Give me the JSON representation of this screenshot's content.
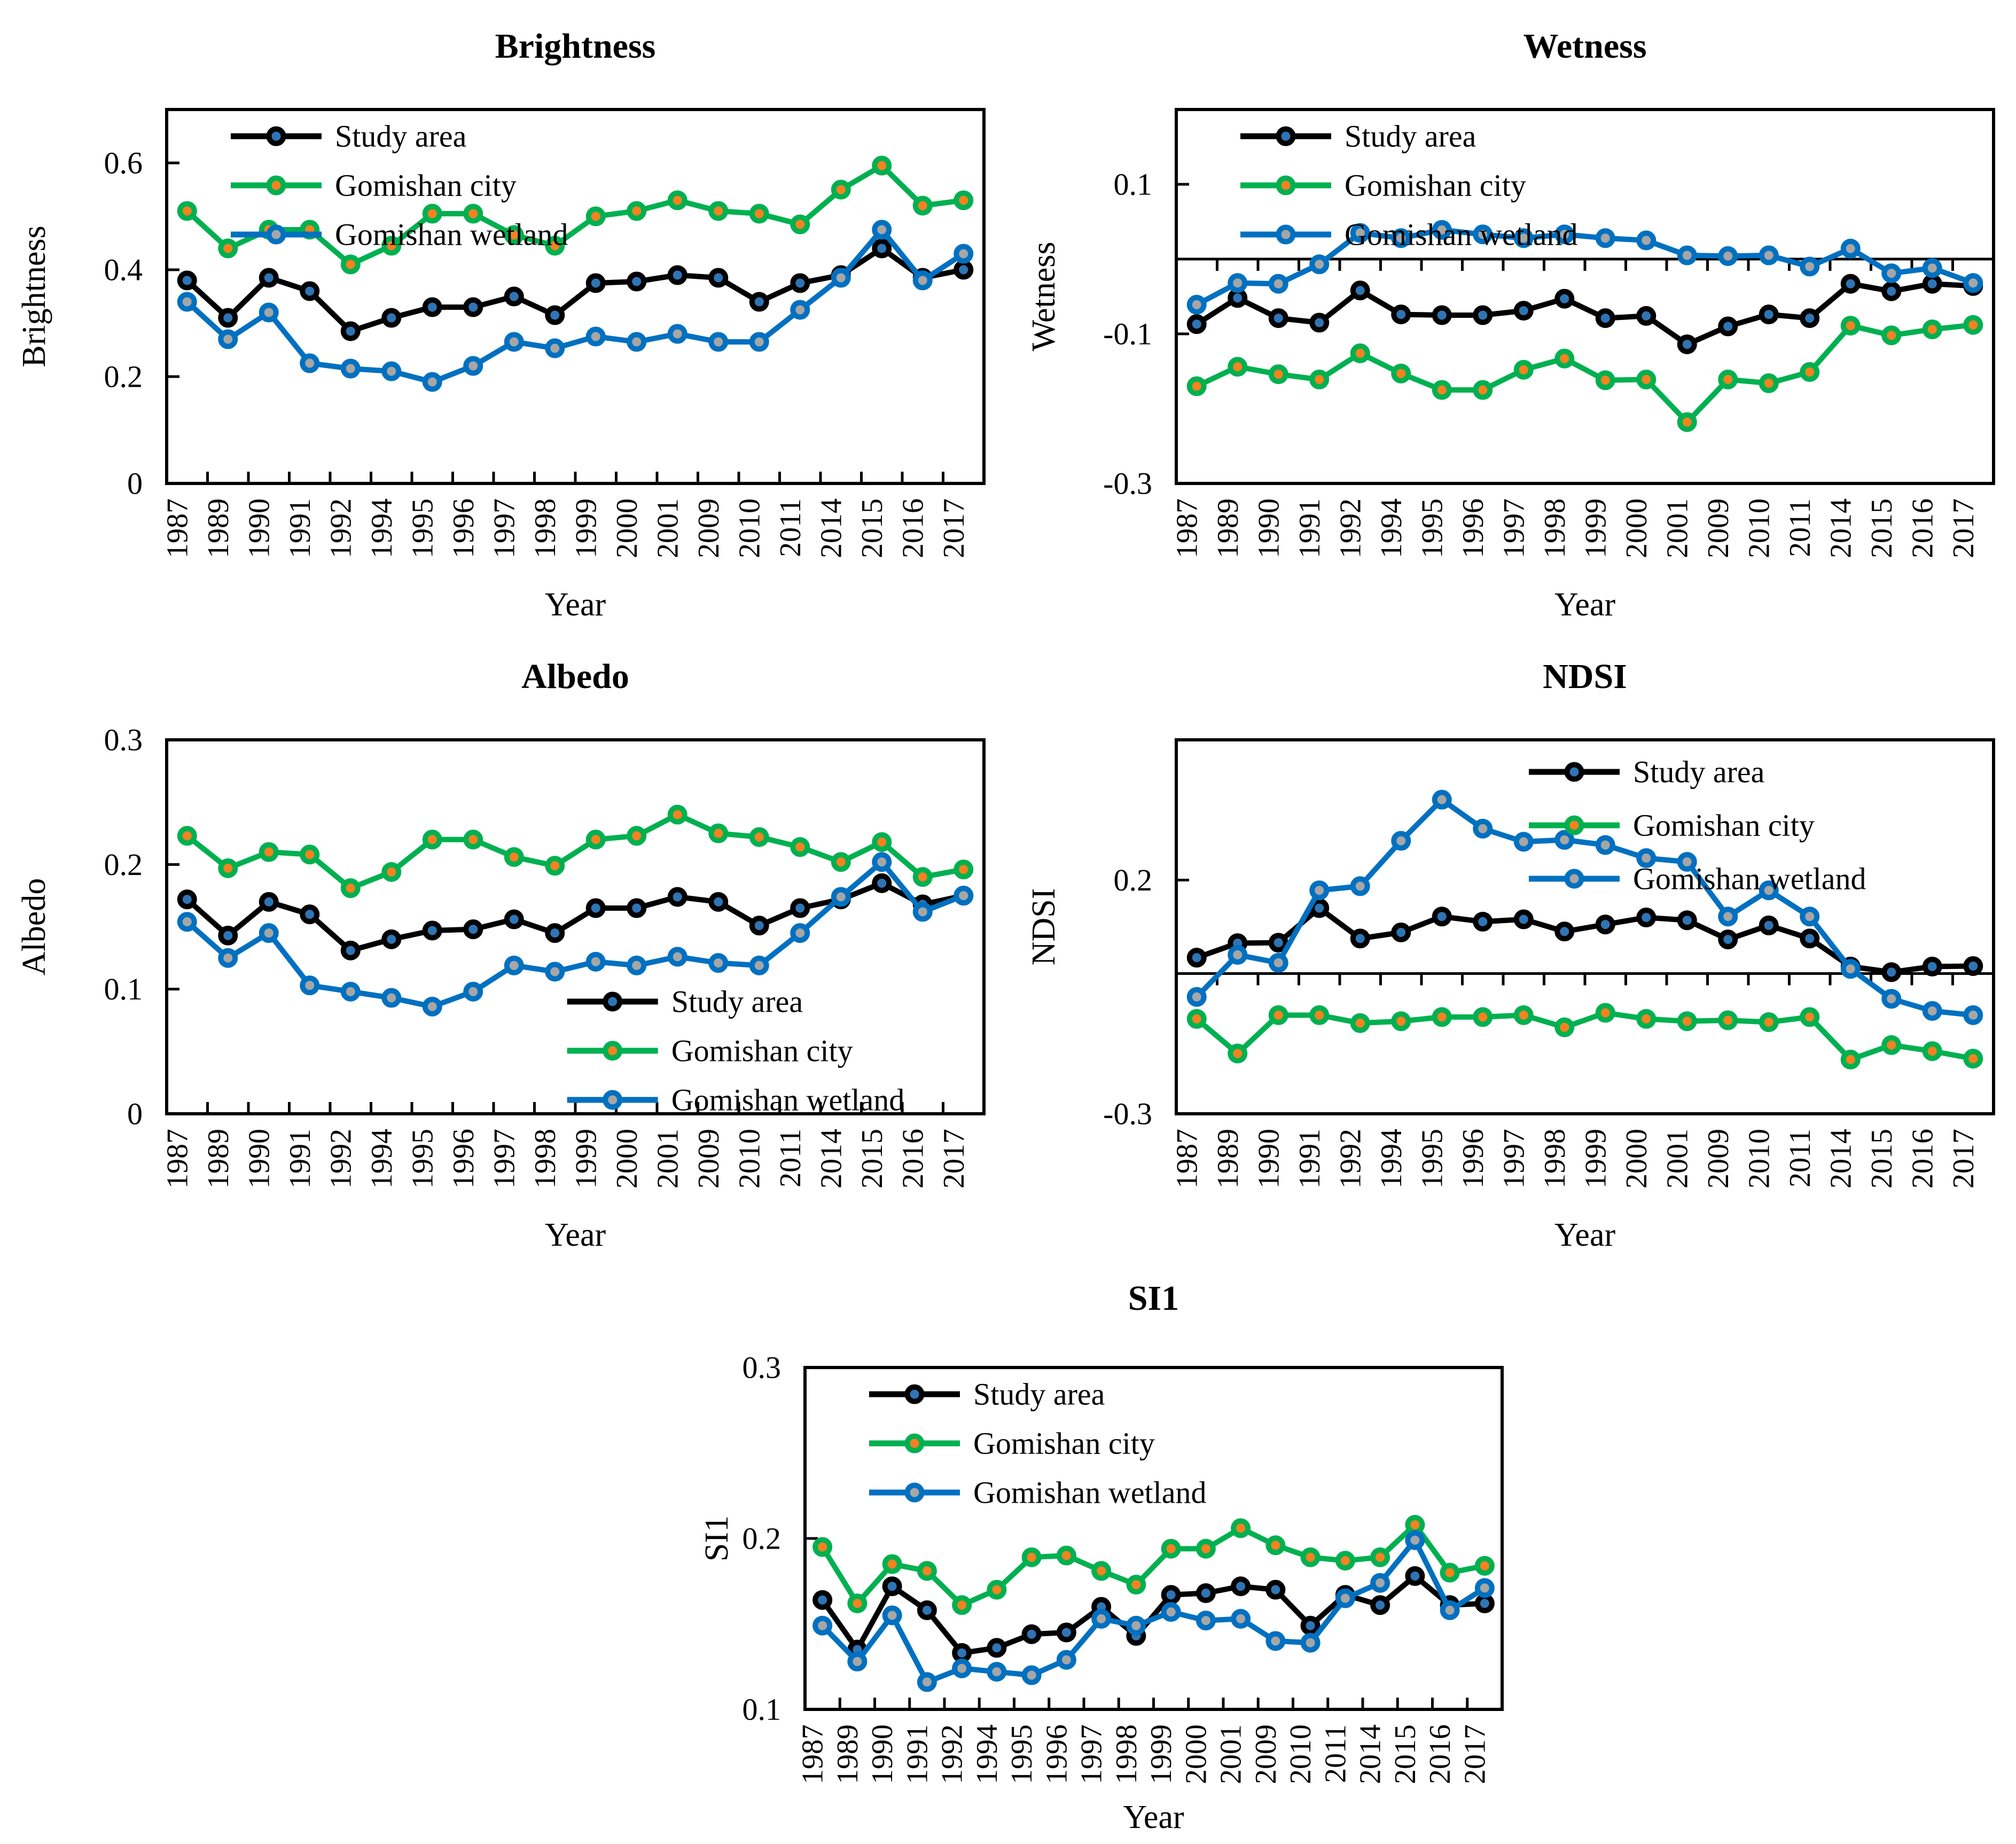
{
  "figure": {
    "series_names": [
      "Study area",
      "Gomishan city",
      "Gomishan wetland"
    ],
    "colors": {
      "study_area_line": "#000000",
      "study_area_marker": "#2E75B6",
      "gomishan_city_line": "#00B050",
      "gomishan_city_marker": "#F5821F",
      "gomishan_wetland_line": "#0070C0",
      "gomishan_wetland_marker": "#A6A6A6"
    }
  },
  "chart_data": [
    {
      "type": "line",
      "title": "Brightness",
      "xlabel": "Year",
      "ylabel": "Brightness",
      "ylim": [
        0,
        0.7
      ],
      "yticks": [
        {
          "value": 0,
          "label": "0"
        },
        {
          "value": 0.2,
          "label": "0.2"
        },
        {
          "value": 0.4,
          "label": "0.4"
        },
        {
          "value": 0.6,
          "label": "0.6"
        }
      ],
      "zero_line": false,
      "grid": false,
      "legend_position": "top-left",
      "categories": [
        "1987",
        "1989",
        "1990",
        "1991",
        "1992",
        "1994",
        "1995",
        "1996",
        "1997",
        "1998",
        "1999",
        "2000",
        "2001",
        "2009",
        "2010",
        "2011",
        "2014",
        "2015",
        "2016",
        "2017"
      ],
      "series": [
        {
          "name": "Study area",
          "line_color": "#000000",
          "marker_color": "#2E75B6",
          "values": [
            0.38,
            0.31,
            0.385,
            0.36,
            0.285,
            0.31,
            0.33,
            0.33,
            0.35,
            0.315,
            0.375,
            0.378,
            0.39,
            0.385,
            0.34,
            0.375,
            0.39,
            0.44,
            0.385,
            0.4
          ]
        },
        {
          "name": "Gomishan city",
          "line_color": "#00B050",
          "marker_color": "#F5821F",
          "values": [
            0.51,
            0.44,
            0.475,
            0.475,
            0.41,
            0.445,
            0.505,
            0.505,
            0.465,
            0.445,
            0.5,
            0.51,
            0.53,
            0.51,
            0.505,
            0.485,
            0.55,
            0.595,
            0.52,
            0.53
          ]
        },
        {
          "name": "Gomishan wetland",
          "line_color": "#0070C0",
          "marker_color": "#A6A6A6",
          "values": [
            0.34,
            0.27,
            0.32,
            0.225,
            0.215,
            0.21,
            0.19,
            0.22,
            0.265,
            0.253,
            0.275,
            0.265,
            0.28,
            0.265,
            0.265,
            0.325,
            0.385,
            0.475,
            0.38,
            0.43
          ]
        }
      ]
    },
    {
      "type": "line",
      "title": "Wetness",
      "xlabel": "Year",
      "ylabel": "Wetness",
      "ylim": [
        -0.3,
        0.2
      ],
      "yticks": [
        {
          "value": 0.1,
          "label": "0.1"
        },
        {
          "value": -0.1,
          "label": "-0.1"
        },
        {
          "value": -0.3,
          "label": "-0.3"
        }
      ],
      "zero_line": true,
      "grid": false,
      "legend_position": "top-left",
      "categories": [
        "1987",
        "1989",
        "1990",
        "1991",
        "1992",
        "1994",
        "1995",
        "1996",
        "1997",
        "1998",
        "1999",
        "2000",
        "2001",
        "2009",
        "2010",
        "2011",
        "2014",
        "2015",
        "2016",
        "2017"
      ],
      "series": [
        {
          "name": "Study area",
          "line_color": "#000000",
          "marker_color": "#2E75B6",
          "values": [
            -0.087,
            -0.052,
            -0.079,
            -0.085,
            -0.042,
            -0.074,
            -0.075,
            -0.075,
            -0.069,
            -0.053,
            -0.079,
            -0.076,
            -0.114,
            -0.09,
            -0.074,
            -0.079,
            -0.033,
            -0.043,
            -0.033,
            -0.036
          ]
        },
        {
          "name": "Gomishan city",
          "line_color": "#00B050",
          "marker_color": "#F5821F",
          "values": [
            -0.17,
            -0.144,
            -0.154,
            -0.161,
            -0.126,
            -0.153,
            -0.175,
            -0.175,
            -0.148,
            -0.133,
            -0.162,
            -0.161,
            -0.218,
            -0.161,
            -0.166,
            -0.151,
            -0.089,
            -0.102,
            -0.094,
            -0.088
          ]
        },
        {
          "name": "Gomishan wetland",
          "line_color": "#0070C0",
          "marker_color": "#A6A6A6",
          "values": [
            -0.061,
            -0.032,
            -0.033,
            -0.007,
            0.035,
            0.028,
            0.039,
            0.033,
            0.028,
            0.033,
            0.028,
            0.025,
            0.005,
            0.004,
            0.005,
            -0.01,
            0.014,
            -0.019,
            -0.012,
            -0.032
          ]
        }
      ]
    },
    {
      "type": "line",
      "title": "Albedo",
      "xlabel": "Year",
      "ylabel": "Albedo",
      "ylim": [
        0,
        0.3
      ],
      "yticks": [
        {
          "value": 0,
          "label": "0"
        },
        {
          "value": 0.1,
          "label": "0.1"
        },
        {
          "value": 0.2,
          "label": "0.2"
        },
        {
          "value": 0.3,
          "label": "0.3"
        }
      ],
      "zero_line": false,
      "grid": false,
      "legend_position": "bottom-right",
      "categories": [
        "1987",
        "1989",
        "1990",
        "1991",
        "1992",
        "1994",
        "1995",
        "1996",
        "1997",
        "1998",
        "1999",
        "2000",
        "2001",
        "2009",
        "2010",
        "2011",
        "2014",
        "2015",
        "2016",
        "2017"
      ],
      "series": [
        {
          "name": "Study area",
          "line_color": "#000000",
          "marker_color": "#2E75B6",
          "values": [
            0.172,
            0.143,
            0.17,
            0.16,
            0.131,
            0.14,
            0.147,
            0.148,
            0.156,
            0.145,
            0.165,
            0.165,
            0.174,
            0.17,
            0.151,
            0.165,
            0.172,
            0.185,
            0.168,
            0.175
          ]
        },
        {
          "name": "Gomishan city",
          "line_color": "#00B050",
          "marker_color": "#F5821F",
          "values": [
            0.223,
            0.197,
            0.21,
            0.208,
            0.181,
            0.194,
            0.22,
            0.22,
            0.206,
            0.199,
            0.22,
            0.223,
            0.24,
            0.225,
            0.222,
            0.214,
            0.202,
            0.218,
            0.19,
            0.196
          ]
        },
        {
          "name": "Gomishan wetland",
          "line_color": "#0070C0",
          "marker_color": "#A6A6A6",
          "values": [
            0.154,
            0.125,
            0.145,
            0.103,
            0.098,
            0.093,
            0.086,
            0.098,
            0.119,
            0.114,
            0.122,
            0.119,
            0.126,
            0.121,
            0.119,
            0.145,
            0.174,
            0.202,
            0.162,
            0.175
          ]
        }
      ]
    },
    {
      "type": "line",
      "title": "NDSI",
      "xlabel": "Year",
      "ylabel": "NDSI",
      "ylim": [
        -0.3,
        0.5
      ],
      "yticks": [
        {
          "value": 0.2,
          "label": "0.2"
        },
        {
          "value": -0.3,
          "label": "-0.3"
        }
      ],
      "zero_line": true,
      "grid": false,
      "legend_position": "top-right",
      "categories": [
        "1987",
        "1989",
        "1990",
        "1991",
        "1992",
        "1994",
        "1995",
        "1996",
        "1997",
        "1998",
        "1999",
        "2000",
        "2001",
        "2009",
        "2010",
        "2011",
        "2014",
        "2015",
        "2016",
        "2017"
      ],
      "series": [
        {
          "name": "Study area",
          "line_color": "#000000",
          "marker_color": "#2E75B6",
          "values": [
            0.034,
            0.065,
            0.066,
            0.14,
            0.075,
            0.088,
            0.122,
            0.111,
            0.116,
            0.09,
            0.105,
            0.12,
            0.114,
            0.073,
            0.103,
            0.075,
            0.015,
            0.003,
            0.015,
            0.016
          ]
        },
        {
          "name": "Gomishan city",
          "line_color": "#00B050",
          "marker_color": "#F5821F",
          "values": [
            -0.097,
            -0.171,
            -0.089,
            -0.089,
            -0.106,
            -0.102,
            -0.093,
            -0.093,
            -0.089,
            -0.115,
            -0.084,
            -0.097,
            -0.102,
            -0.1,
            -0.104,
            -0.093,
            -0.184,
            -0.153,
            -0.166,
            -0.182
          ]
        },
        {
          "name": "Gomishan wetland",
          "line_color": "#0070C0",
          "marker_color": "#A6A6A6",
          "values": [
            -0.05,
            0.04,
            0.023,
            0.178,
            0.187,
            0.284,
            0.372,
            0.31,
            0.282,
            0.286,
            0.275,
            0.247,
            0.239,
            0.122,
            0.178,
            0.122,
            0.01,
            -0.054,
            -0.08,
            -0.089
          ]
        }
      ]
    },
    {
      "type": "line",
      "title": "SI1",
      "xlabel": "Year",
      "ylabel": "SI1",
      "ylim": [
        0.1,
        0.3
      ],
      "yticks": [
        {
          "value": 0.1,
          "label": "0.1"
        },
        {
          "value": 0.2,
          "label": "0.2"
        },
        {
          "value": 0.3,
          "label": "0.3"
        }
      ],
      "zero_line": false,
      "grid": false,
      "legend_position": "top-left",
      "categories": [
        "1987",
        "1989",
        "1990",
        "1991",
        "1992",
        "1994",
        "1995",
        "1996",
        "1997",
        "1998",
        "1999",
        "2000",
        "2001",
        "2009",
        "2010",
        "2011",
        "2014",
        "2015",
        "2016",
        "2017"
      ],
      "series": [
        {
          "name": "Study area",
          "line_color": "#000000",
          "marker_color": "#2E75B6",
          "values": [
            0.164,
            0.135,
            0.172,
            0.158,
            0.133,
            0.136,
            0.144,
            0.145,
            0.16,
            0.143,
            0.167,
            0.168,
            0.172,
            0.17,
            0.149,
            0.167,
            0.161,
            0.178,
            0.161,
            0.162
          ]
        },
        {
          "name": "Gomishan city",
          "line_color": "#00B050",
          "marker_color": "#F5821F",
          "values": [
            0.195,
            0.162,
            0.185,
            0.181,
            0.161,
            0.17,
            0.189,
            0.19,
            0.181,
            0.173,
            0.194,
            0.194,
            0.206,
            0.196,
            0.189,
            0.187,
            0.189,
            0.208,
            0.18,
            0.184
          ]
        },
        {
          "name": "Gomishan wetland",
          "line_color": "#0070C0",
          "marker_color": "#A6A6A6",
          "values": [
            0.149,
            0.128,
            0.155,
            0.116,
            0.124,
            0.122,
            0.12,
            0.129,
            0.153,
            0.149,
            0.157,
            0.152,
            0.153,
            0.14,
            0.139,
            0.165,
            0.174,
            0.199,
            0.158,
            0.171
          ]
        }
      ]
    }
  ]
}
